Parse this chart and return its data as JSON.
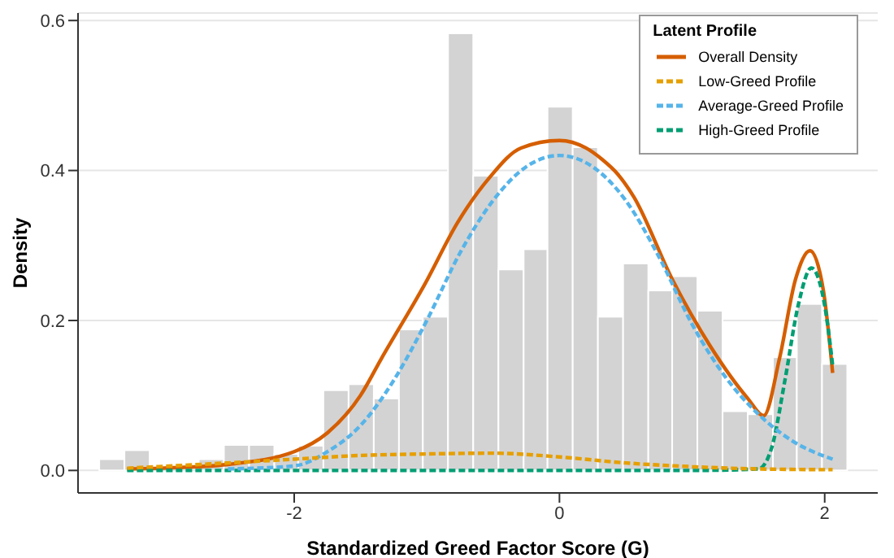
{
  "chart_data": {
    "type": "histogram",
    "xlabel": "Standardized Greed Factor Score (G)",
    "ylabel": "Density",
    "legend_title": "Latent Profile",
    "bins": [
      -3.47,
      -3.28,
      -3.09,
      -2.72,
      -2.53,
      -2.34,
      -2.15,
      -1.97,
      -1.78,
      -1.59,
      -1.4,
      -1.21,
      -1.03,
      -0.84,
      -0.65,
      -0.46,
      -0.27,
      -0.09,
      0.1,
      0.29,
      0.48,
      0.67,
      0.85,
      1.04,
      1.23,
      1.42,
      1.61,
      1.79,
      1.98,
      2.17
    ],
    "values": [
      0.015,
      0.027,
      0,
      0.015,
      0.034,
      0.034,
      0.022,
      0.033,
      0.107,
      0.115,
      0.096,
      0.188,
      0.205,
      0.583,
      0.393,
      0.268,
      0.295,
      0.485,
      0.431,
      0.205,
      0.276,
      0.24,
      0.259,
      0.213,
      0.079,
      0.075,
      0.151,
      0.222,
      0.142
    ],
    "color": "#d3d3d3",
    "series": [
      {
        "name": "Overall Density",
        "type": "line",
        "color": "#d55e00",
        "line_style": "solid",
        "x": [
          -3.26,
          -3,
          -2.5,
          -2,
          -1.75,
          -1.5,
          -1.34,
          -1.01,
          -0.77,
          -0.53,
          -0.29,
          0,
          0.2,
          0.32,
          0.44,
          0.56,
          0.85,
          1.14,
          1.42,
          1.54,
          1.66,
          1.78,
          1.89,
          1.99,
          2.06
        ],
        "values": [
          0.002,
          0.003,
          0.008,
          0.025,
          0.05,
          0.1,
          0.15,
          0.25,
          0.33,
          0.39,
          0.43,
          0.44,
          0.43,
          0.415,
          0.395,
          0.365,
          0.255,
          0.165,
          0.096,
          0.073,
          0.15,
          0.255,
          0.293,
          0.24,
          0.13
        ]
      },
      {
        "name": "Low-Greed Profile",
        "type": "line",
        "color": "#e69f00",
        "line_style": "dashed",
        "x": [
          -3.26,
          -2.5,
          -2,
          -1.5,
          -1,
          -0.5,
          0,
          0.5,
          1,
          1.5,
          2.06
        ],
        "values": [
          0.003,
          0.01,
          0.015,
          0.02,
          0.022,
          0.023,
          0.018,
          0.01,
          0.005,
          0.002,
          0.001
        ]
      },
      {
        "name": "Average-Greed Profile",
        "type": "line",
        "color": "#56b4e9",
        "line_style": "dashed",
        "x": [
          -2.5,
          -2,
          -1.75,
          -1.5,
          -1.25,
          -1,
          -0.75,
          -0.5,
          -0.25,
          0,
          0.25,
          0.5,
          0.75,
          1,
          1.25,
          1.5,
          1.75,
          2.06
        ],
        "values": [
          0.002,
          0.006,
          0.025,
          0.06,
          0.12,
          0.2,
          0.29,
          0.36,
          0.405,
          0.42,
          0.405,
          0.36,
          0.285,
          0.195,
          0.125,
          0.075,
          0.04,
          0.015
        ]
      },
      {
        "name": "High-Greed Profile",
        "type": "line",
        "color": "#009e73",
        "line_style": "dashed",
        "x": [
          -3.26,
          -2,
          -1,
          0,
          1,
          1.5,
          1.6,
          1.7,
          1.8,
          1.9,
          2,
          2.06
        ],
        "values": [
          0,
          0,
          0,
          0,
          0,
          0.002,
          0.03,
          0.12,
          0.22,
          0.27,
          0.22,
          0.14
        ]
      }
    ],
    "xlim": [
      -3.63,
      2.4
    ],
    "ylim": [
      -0.03,
      0.61
    ],
    "xticks": [
      -2,
      0,
      2
    ],
    "yticks": [
      {
        "value": 0,
        "label": "0.0"
      },
      {
        "value": 0.2,
        "label": "0.2"
      },
      {
        "value": 0.4,
        "label": "0.4"
      },
      {
        "value": 0.6,
        "label": "0.6"
      }
    ],
    "grid": "y",
    "legend": "top right"
  }
}
